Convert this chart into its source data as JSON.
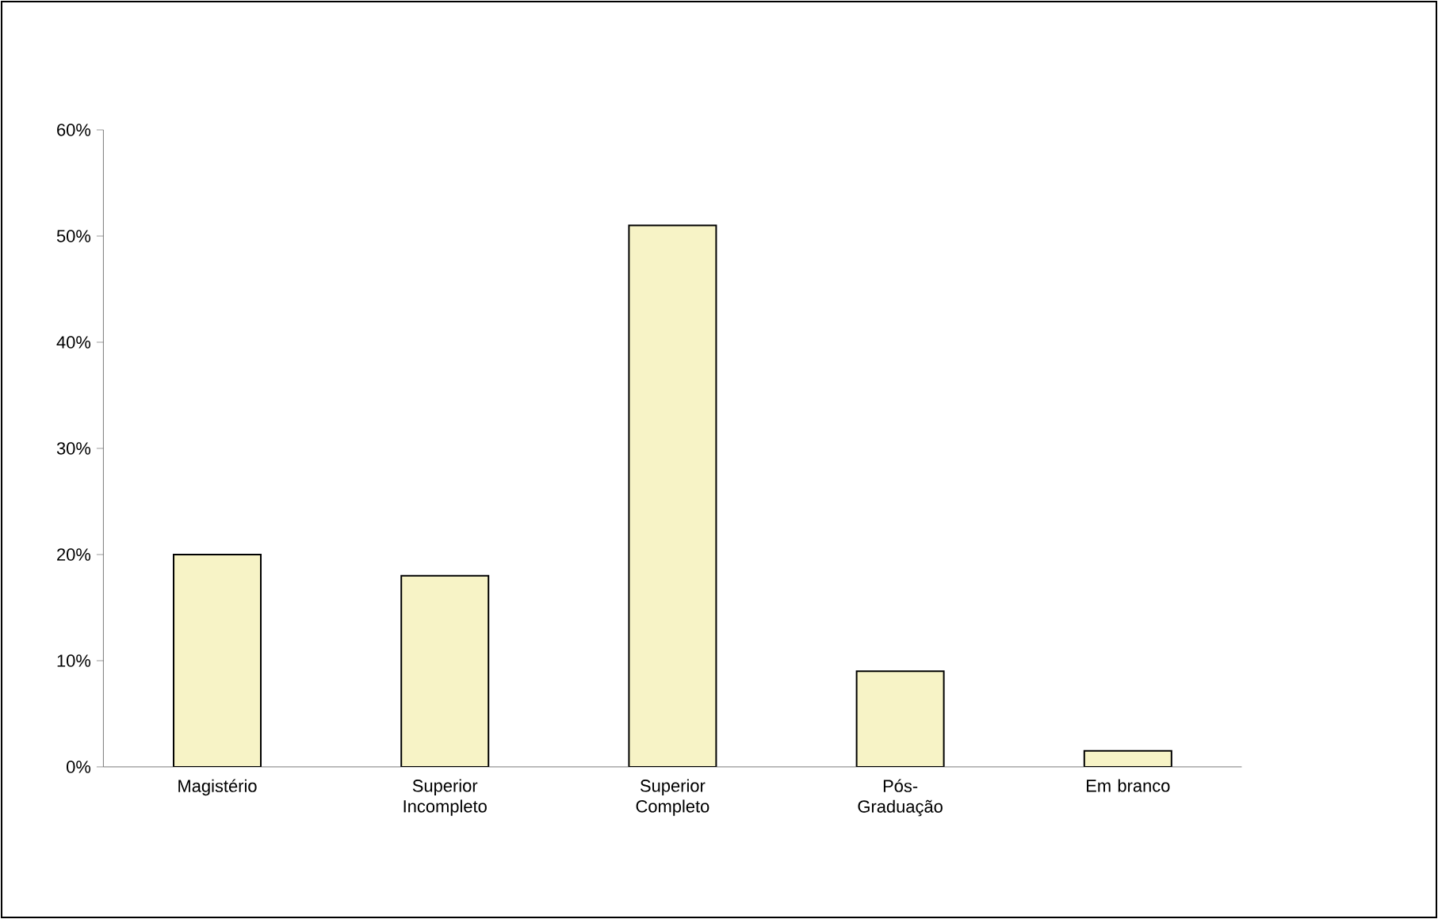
{
  "chart_data": {
    "type": "bar",
    "categories": [
      "Magistério",
      "Superior Incompleto",
      "Superior Completo",
      "Pós-Graduação",
      "Em branco"
    ],
    "values": [
      20,
      18,
      51,
      9,
      1.5
    ],
    "color": "#f7f3c6",
    "ylim": [
      0,
      60
    ],
    "yticks": [
      {
        "value": 0,
        "label": "0%"
      },
      {
        "value": 10,
        "label": "10%"
      },
      {
        "value": 20,
        "label": "20%"
      },
      {
        "value": 30,
        "label": "30%"
      },
      {
        "value": 40,
        "label": "40%"
      },
      {
        "value": 50,
        "label": "50%"
      },
      {
        "value": 60,
        "label": "60%"
      }
    ],
    "grid": false
  }
}
